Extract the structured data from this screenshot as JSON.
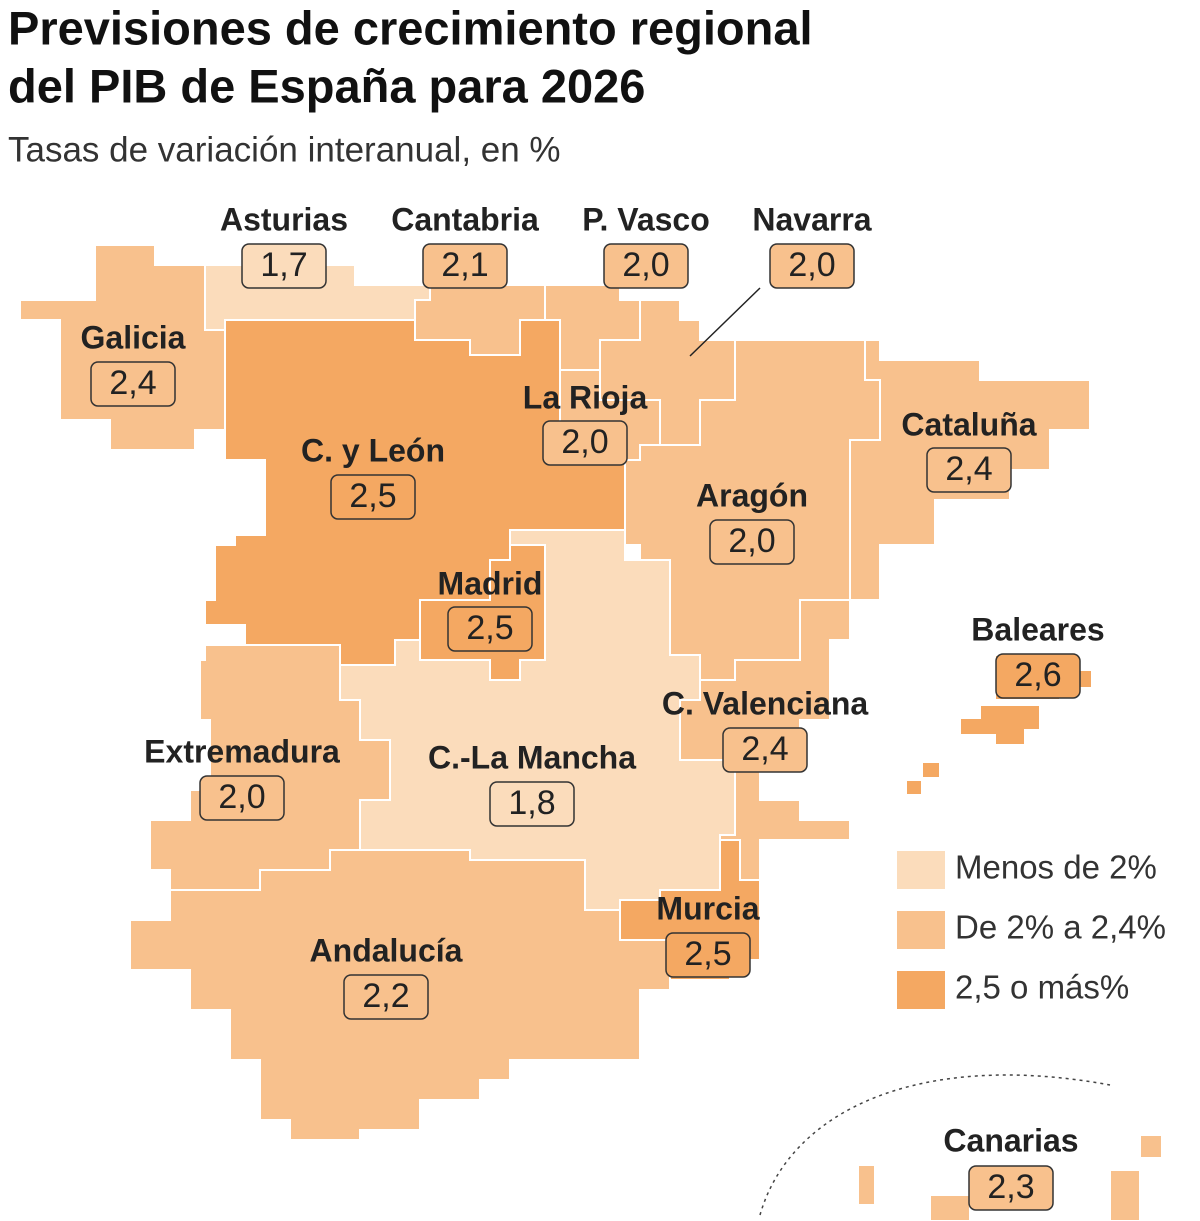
{
  "title": [
    "Previsiones de crecimiento regional",
    "del PIB de España para 2026"
  ],
  "subtitle": "Tasas de variación interanual, en %",
  "regions": [
    {
      "name": "Asturias",
      "value": "1,7",
      "color": "#fbdcbb"
    },
    {
      "name": "Cantabria",
      "value": "2,1",
      "color": "#f8c18d"
    },
    {
      "name": "P. Vasco",
      "value": "2,0",
      "color": "#f8c18d"
    },
    {
      "name": "Navarra",
      "value": "2,0",
      "color": "#f8c18d"
    },
    {
      "name": "Galicia",
      "value": "2,4",
      "color": "#f8c18d"
    },
    {
      "name": "La Rioja",
      "value": "2,0",
      "color": "#f8c18d"
    },
    {
      "name": "C. y León",
      "value": "2,5",
      "color": "#f4a862"
    },
    {
      "name": "Cataluña",
      "value": "2,4",
      "color": "#f8c18d"
    },
    {
      "name": "Aragón",
      "value": "2,0",
      "color": "#f8c18d"
    },
    {
      "name": "Madrid",
      "value": "2,5",
      "color": "#f4a862"
    },
    {
      "name": "Baleares",
      "value": "2,6",
      "color": "#f4a862"
    },
    {
      "name": "C. Valenciana",
      "value": "2,4",
      "color": "#f8c18d"
    },
    {
      "name": "Extremadura",
      "value": "2,0",
      "color": "#f8c18d"
    },
    {
      "name": "C.-La Mancha",
      "value": "1,8",
      "color": "#fbdcbb"
    },
    {
      "name": "Murcia",
      "value": "2,5",
      "color": "#f4a862"
    },
    {
      "name": "Andalucía",
      "value": "2,2",
      "color": "#f8c18d"
    },
    {
      "name": "Canarias",
      "value": "2,3",
      "color": "#f8c18d"
    }
  ],
  "legend": [
    {
      "label": "Menos de 2%",
      "color": "#fbdcbb"
    },
    {
      "label": "De 2% a 2,4%",
      "color": "#f8c18d"
    },
    {
      "label": "2,5 o más%",
      "color": "#f4a862"
    }
  ]
}
